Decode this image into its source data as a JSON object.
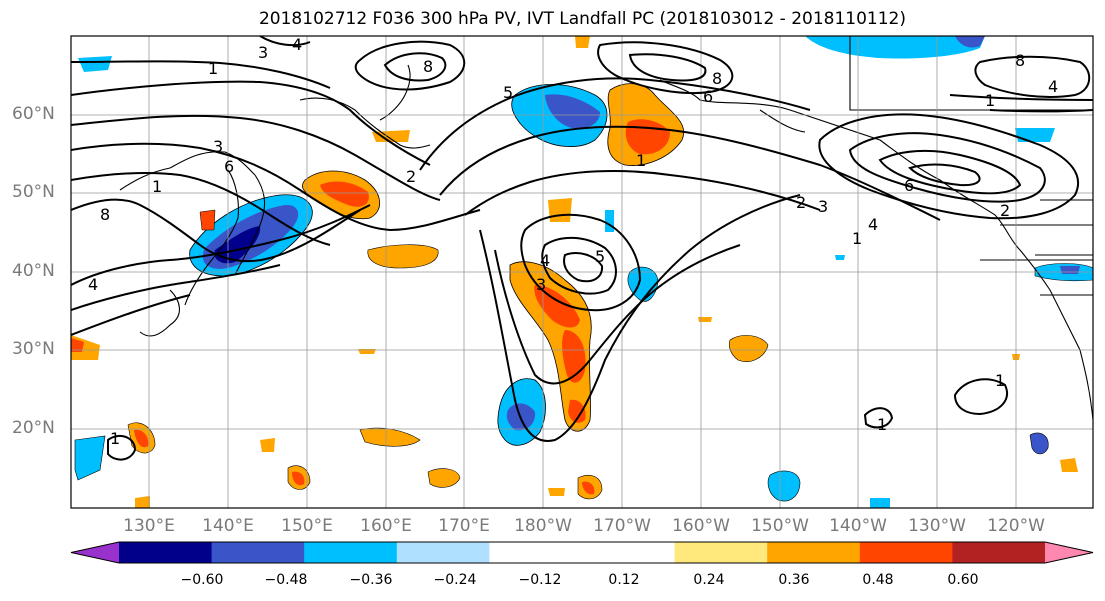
{
  "title": "2018102712 F036 300 hPa PV, IVT Landfall PC (2018103012 - 2018110112)",
  "map": {
    "lat_labels": [
      "60°N",
      "50°N",
      "40°N",
      "30°N",
      "20°N"
    ],
    "lon_labels": [
      "130°E",
      "140°E",
      "150°E",
      "160°E",
      "170°E",
      "180°W",
      "170°W",
      "160°W",
      "150°W",
      "140°W",
      "130°W",
      "120°W"
    ],
    "contour_labels": [
      "1",
      "2",
      "3",
      "4",
      "5",
      "6",
      "8"
    ],
    "land_color": "#ffffff",
    "contour_color": "#000000",
    "grid_color": "#999999"
  },
  "colorbar": {
    "colors": [
      "#9932cc",
      "#00008b",
      "#3a55c8",
      "#00bfff",
      "#b0e0ff",
      "#ffffff",
      "#ffffff",
      "#ffe87c",
      "#ffa500",
      "#ff4500",
      "#b22222",
      "#ff88b0"
    ],
    "tick_labels": [
      "−0.60",
      "−0.48",
      "−0.36",
      "−0.24",
      "−0.12",
      "0.12",
      "0.24",
      "0.36",
      "0.48",
      "0.60"
    ]
  }
}
